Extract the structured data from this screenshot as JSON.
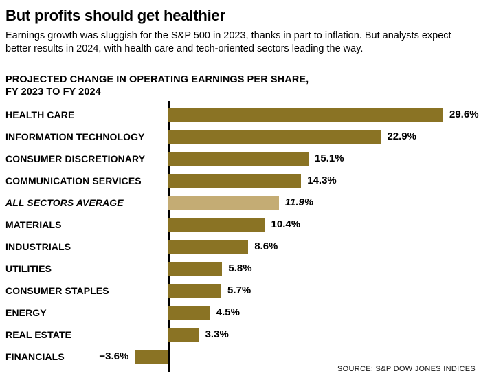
{
  "header": {
    "title": "But profits should get healthier",
    "subtitle": "Earnings growth was sluggish for the S&P 500 in 2023, thanks in part to inflation. But analysts expect better results in 2024, with health care and tech-oriented sectors leading the way."
  },
  "chart_heading": "PROJECTED CHANGE IN OPERATING EARNINGS PER SHARE,\nFY 2023 TO FY 2024",
  "source": "SOURCE: S&P DOW JONES INDICES",
  "colors": {
    "bar": "#8a7324",
    "highlight_bar": "#c4ac74",
    "axis": "#000000"
  },
  "chart_data": {
    "type": "bar",
    "orientation": "horizontal",
    "title": "PROJECTED CHANGE IN OPERATING EARNINGS PER SHARE, FY 2023 TO FY 2024",
    "categories": [
      "HEALTH CARE",
      "INFORMATION TECHNOLOGY",
      "CONSUMER DISCRETIONARY",
      "COMMUNICATION SERVICES",
      "ALL SECTORS AVERAGE",
      "MATERIALS",
      "INDUSTRIALS",
      "UTILITIES",
      "CONSUMER STAPLES",
      "ENERGY",
      "REAL ESTATE",
      "FINANCIALS"
    ],
    "values": [
      29.6,
      22.9,
      15.1,
      14.3,
      11.9,
      10.4,
      8.6,
      5.8,
      5.7,
      4.5,
      3.3,
      -3.6
    ],
    "value_labels": [
      "29.6%",
      "22.9%",
      "15.1%",
      "14.3%",
      "11.9%",
      "10.4%",
      "8.6%",
      "5.8%",
      "5.7%",
      "4.5%",
      "3.3%",
      "−3.6%"
    ],
    "highlight_index": 4,
    "highlight_note": "ALL SECTORS AVERAGE shown in lighter color and italics",
    "xlim": [
      -5,
      30
    ],
    "unit": "%",
    "grid": false,
    "legend": "none"
  }
}
